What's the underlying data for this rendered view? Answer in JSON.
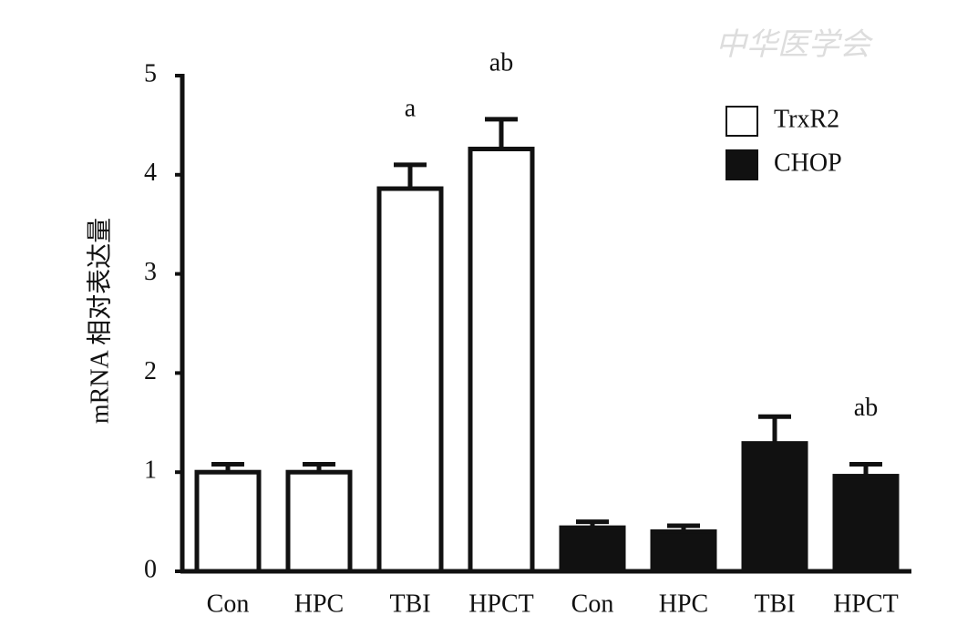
{
  "chart_data": {
    "type": "bar",
    "y_label": "mRNA 相对表达量",
    "watermark": "中华医学会",
    "categories": [
      "Con",
      "HPC",
      "TBI",
      "HPCT",
      "Con",
      "HPC",
      "TBI",
      "HPCT"
    ],
    "series": [
      {
        "name": "TrxR2",
        "color": "#ffffff",
        "values": [
          1.0,
          1.0,
          3.86,
          4.26,
          null,
          null,
          null,
          null
        ],
        "errors": [
          0.08,
          0.08,
          0.24,
          0.3,
          null,
          null,
          null,
          null
        ],
        "annotations": [
          null,
          null,
          "a",
          "ab",
          null,
          null,
          null,
          null
        ]
      },
      {
        "name": "CHOP",
        "color": "#111111",
        "values": [
          null,
          null,
          null,
          null,
          0.44,
          0.4,
          1.29,
          0.96
        ],
        "errors": [
          null,
          null,
          null,
          null,
          0.06,
          0.06,
          0.27,
          0.12
        ],
        "annotations": [
          null,
          null,
          null,
          null,
          null,
          null,
          null,
          "ab"
        ]
      }
    ],
    "ylim": [
      0,
      5
    ],
    "yticks": [
      0,
      1,
      2,
      3,
      4,
      5
    ],
    "legend": "upper right"
  }
}
